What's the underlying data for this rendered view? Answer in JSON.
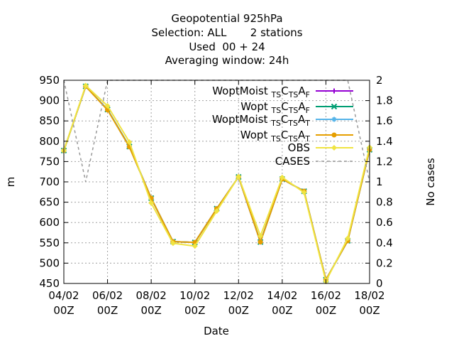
{
  "chart_data": {
    "type": "line",
    "title_lines": [
      "Geopotential 925hPa",
      "Selection: ALL       2 stations",
      "Used  00 + 24",
      "Averaging window: 24h"
    ],
    "xlabel": "Date",
    "ylabel": "m",
    "y2label": "No cases",
    "ylim": [
      450,
      950
    ],
    "y2lim": [
      0,
      2
    ],
    "yticks": [
      450,
      500,
      550,
      600,
      650,
      700,
      750,
      800,
      850,
      900,
      950
    ],
    "y2ticks": [
      0,
      0.2,
      0.4,
      0.6,
      0.8,
      1,
      1.2,
      1.4,
      1.6,
      1.8,
      2
    ],
    "xlim_days": [
      4,
      18
    ],
    "xticks": [
      {
        "day": 4,
        "l1": "04/02",
        "l2": "00Z"
      },
      {
        "day": 6,
        "l1": "06/02",
        "l2": "00Z"
      },
      {
        "day": 8,
        "l1": "08/02",
        "l2": "00Z"
      },
      {
        "day": 10,
        "l1": "10/02",
        "l2": "00Z"
      },
      {
        "day": 12,
        "l1": "12/02",
        "l2": "00Z"
      },
      {
        "day": 14,
        "l1": "14/02",
        "l2": "00Z"
      },
      {
        "day": 16,
        "l1": "16/02",
        "l2": "00Z"
      },
      {
        "day": 18,
        "l1": "18/02",
        "l2": "00Z"
      }
    ],
    "grid": true,
    "legend_position": "top-right",
    "x": [
      4,
      5,
      6,
      7,
      8,
      9,
      10,
      11,
      12,
      13,
      14,
      15,
      16,
      17,
      18
    ],
    "series": [
      {
        "name": "WoptMoist",
        "sub1": "TS",
        "mid": "C",
        "sub2": "TS",
        "end": "A",
        "sub3": "F",
        "color": "#9400d3",
        "marker": "plus",
        "axis": "y1",
        "values": [
          777,
          935,
          878,
          787,
          660,
          553,
          551,
          634,
          712,
          552,
          707,
          677,
          459,
          555,
          779
        ]
      },
      {
        "name": "Wopt",
        "sub1": "TS",
        "mid": "C",
        "sub2": "TS",
        "end": "A",
        "sub3": "F",
        "color": "#009e73",
        "marker": "cross",
        "axis": "y1",
        "values": [
          777,
          935,
          878,
          787,
          660,
          553,
          551,
          634,
          712,
          552,
          707,
          677,
          459,
          555,
          779
        ]
      },
      {
        "name": "WoptMoist",
        "sub1": "TS",
        "mid": "C",
        "sub2": "TS",
        "end": "A",
        "sub3": "T",
        "color": "#56b4e9",
        "marker": "star",
        "axis": "y1",
        "values": [
          777,
          935,
          878,
          786,
          660,
          553,
          551,
          634,
          712,
          553,
          707,
          677,
          459,
          555,
          779
        ]
      },
      {
        "name": "Wopt",
        "sub1": "TS",
        "mid": "C",
        "sub2": "TS",
        "end": "A",
        "sub3": "T",
        "color": "#e69f00",
        "marker": "circle",
        "axis": "y1",
        "values": [
          777,
          935,
          877,
          786,
          660,
          553,
          551,
          634,
          712,
          552,
          707,
          677,
          459,
          555,
          779
        ]
      },
      {
        "name": "OBS",
        "color": "#f0e442",
        "marker": "diamond",
        "axis": "y1",
        "values": [
          777,
          937,
          887,
          798,
          648,
          549,
          542,
          628,
          713,
          567,
          711,
          674,
          455,
          561,
          785
        ]
      },
      {
        "name": "CASES",
        "color": "#999999",
        "marker": "none",
        "dash": true,
        "axis": "y2",
        "values": [
          2,
          1,
          2,
          2,
          2,
          2,
          2,
          2,
          2,
          2,
          2,
          2,
          2,
          2,
          1
        ]
      }
    ]
  }
}
